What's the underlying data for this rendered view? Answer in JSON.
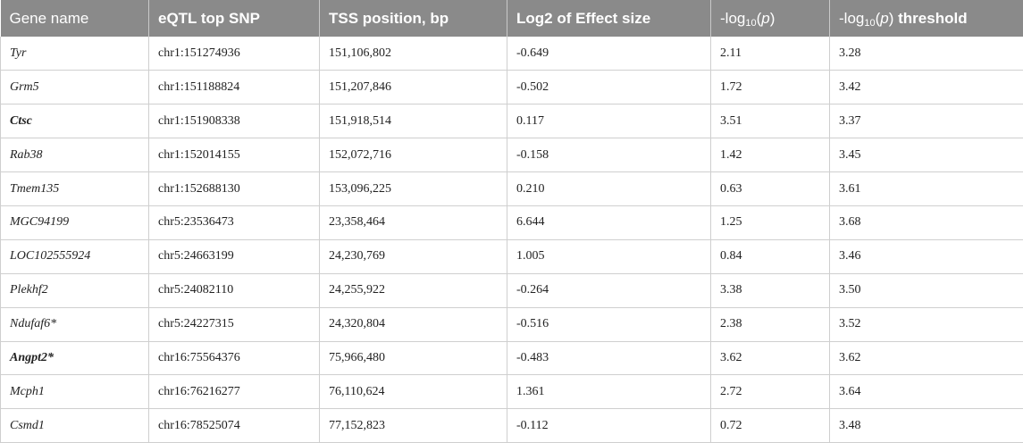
{
  "table": {
    "headers": {
      "gene": "Gene name",
      "snp": "eQTL top SNP",
      "tss": "TSS position, bp",
      "effect": "Log2 of Effect size",
      "logp_pre": "-log",
      "logp_sub": "10",
      "logp_p": "p",
      "thr_pre": "-log",
      "thr_sub": "10",
      "thr_p": "p",
      "thr_word": "threshold"
    },
    "rows": [
      {
        "gene": "Tyr",
        "bold": false,
        "snp": "chr1:151274936",
        "tss": "151,106,802",
        "effect": "-0.649",
        "logp": "2.11",
        "threshold": "3.28"
      },
      {
        "gene": "Grm5",
        "bold": false,
        "snp": "chr1:151188824",
        "tss": "151,207,846",
        "effect": "-0.502",
        "logp": "1.72",
        "threshold": "3.42"
      },
      {
        "gene": "Ctsc",
        "bold": true,
        "snp": "chr1:151908338",
        "tss": "151,918,514",
        "effect": "0.117",
        "logp": "3.51",
        "threshold": "3.37"
      },
      {
        "gene": "Rab38",
        "bold": false,
        "snp": "chr1:152014155",
        "tss": "152,072,716",
        "effect": "-0.158",
        "logp": "1.42",
        "threshold": "3.45"
      },
      {
        "gene": "Tmem135",
        "bold": false,
        "snp": "chr1:152688130",
        "tss": "153,096,225",
        "effect": "0.210",
        "logp": "0.63",
        "threshold": "3.61"
      },
      {
        "gene": "MGC94199",
        "bold": false,
        "snp": "chr5:23536473",
        "tss": "23,358,464",
        "effect": "6.644",
        "logp": "1.25",
        "threshold": "3.68"
      },
      {
        "gene": "LOC102555924",
        "bold": false,
        "snp": "chr5:24663199",
        "tss": "24,230,769",
        "effect": "1.005",
        "logp": "0.84",
        "threshold": "3.46"
      },
      {
        "gene": "Plekhf2",
        "bold": false,
        "snp": "chr5:24082110",
        "tss": "24,255,922",
        "effect": "-0.264",
        "logp": "3.38",
        "threshold": "3.50"
      },
      {
        "gene": "Ndufaf6*",
        "bold": false,
        "snp": "chr5:24227315",
        "tss": "24,320,804",
        "effect": "-0.516",
        "logp": "2.38",
        "threshold": "3.52"
      },
      {
        "gene": "Angpt2*",
        "bold": true,
        "snp": "chr16:75564376",
        "tss": "75,966,480",
        "effect": "-0.483",
        "logp": "3.62",
        "threshold": "3.62"
      },
      {
        "gene": "Mcph1",
        "bold": false,
        "snp": "chr16:76216277",
        "tss": "76,110,624",
        "effect": "1.361",
        "logp": "2.72",
        "threshold": "3.64"
      },
      {
        "gene": "Csmd1",
        "bold": false,
        "snp": "chr16:78525074",
        "tss": "77,152,823",
        "effect": "-0.112",
        "logp": "0.72",
        "threshold": "3.48"
      }
    ]
  }
}
